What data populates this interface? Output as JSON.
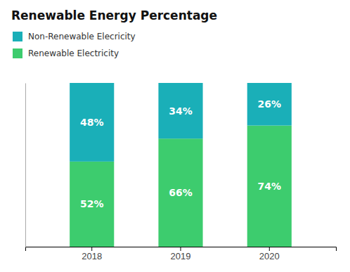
{
  "chart_data": {
    "type": "bar",
    "title": "Renewable Energy Percentage",
    "categories": [
      "2018",
      "2019",
      "2020"
    ],
    "series": [
      {
        "name": "Renewable Electricity",
        "color": "#3dcc6e",
        "values": [
          52,
          66,
          74
        ],
        "value_labels": [
          "52%",
          "66%",
          "74%"
        ]
      },
      {
        "name": "Non-Renewable Elecricity",
        "color": "#1aafb8",
        "values": [
          48,
          34,
          26
        ],
        "value_labels": [
          "48%",
          "34%",
          "26%"
        ]
      }
    ],
    "stacked": true,
    "data_labels": true,
    "ylim": [
      0,
      100
    ],
    "tick_labels": "x",
    "grid": false,
    "legend": "upper left"
  }
}
